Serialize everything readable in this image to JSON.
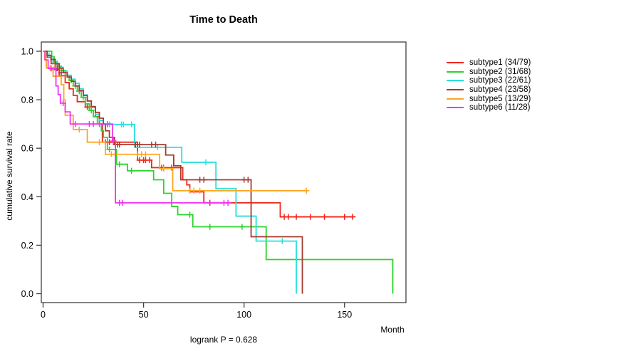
{
  "chart_data": {
    "type": "line",
    "variant": "kaplan-meier-step",
    "title": "Time to Death",
    "xlabel": "Month",
    "ylabel": "cumulative survival rate",
    "annotation": "logrank P = 0.628",
    "xlim": [
      0,
      181
    ],
    "ylim": [
      0.0,
      1.0
    ],
    "x_ticks": [
      0,
      50,
      100,
      150
    ],
    "x_tick_labels": [
      "0",
      "50",
      "100",
      "150"
    ],
    "y_ticks": [
      0.0,
      0.2,
      0.4,
      0.6,
      0.8,
      1.0
    ],
    "y_tick_labels": [
      "0.0",
      "0.2",
      "0.4",
      "0.6",
      "0.8",
      "1.0"
    ],
    "grid": false,
    "frame_color": "#404040",
    "legend_position": "right-outside",
    "series": [
      {
        "name": "subtype1",
        "label": "subtype1 (34/79)",
        "events": 34,
        "n": 79,
        "color": "#F0271C",
        "steps": [
          [
            0,
            1.0
          ],
          [
            2,
            0.975
          ],
          [
            4,
            0.949
          ],
          [
            6,
            0.924
          ],
          [
            8,
            0.899
          ],
          [
            11,
            0.871
          ],
          [
            13,
            0.845
          ],
          [
            15,
            0.818
          ],
          [
            17,
            0.792
          ],
          [
            21,
            0.77
          ],
          [
            26,
            0.73
          ],
          [
            28,
            0.7
          ],
          [
            29.5,
            0.625
          ],
          [
            47,
            0.551
          ],
          [
            54,
            0.52
          ],
          [
            69.5,
            0.47
          ],
          [
            71.5,
            0.449
          ],
          [
            73,
            0.42
          ],
          [
            80,
            0.375
          ],
          [
            118,
            0.317
          ]
        ],
        "end_month": 155,
        "censor_marks": [
          [
            5,
            0.924
          ],
          [
            9,
            0.899
          ],
          [
            22,
            0.77
          ],
          [
            24,
            0.77
          ],
          [
            31,
            0.625
          ],
          [
            33,
            0.625
          ],
          [
            35,
            0.625
          ],
          [
            48,
            0.551
          ],
          [
            50,
            0.551
          ],
          [
            51,
            0.551
          ],
          [
            53,
            0.551
          ],
          [
            59,
            0.52
          ],
          [
            60,
            0.52
          ],
          [
            64,
            0.52
          ],
          [
            83,
            0.375
          ],
          [
            120,
            0.317
          ],
          [
            122,
            0.317
          ],
          [
            126,
            0.317
          ],
          [
            133,
            0.317
          ],
          [
            140,
            0.317
          ],
          [
            150,
            0.317
          ],
          [
            154,
            0.317
          ]
        ]
      },
      {
        "name": "subtype2",
        "label": "subtype2 (31/68)",
        "events": 31,
        "n": 68,
        "color": "#2BD42B",
        "steps": [
          [
            0,
            1.0
          ],
          [
            4.3,
            0.978
          ],
          [
            5.5,
            0.956
          ],
          [
            7,
            0.939
          ],
          [
            9,
            0.921
          ],
          [
            11,
            0.9
          ],
          [
            13,
            0.88
          ],
          [
            15,
            0.857
          ],
          [
            17,
            0.835
          ],
          [
            19,
            0.81
          ],
          [
            21,
            0.783
          ],
          [
            23,
            0.756
          ],
          [
            25,
            0.73
          ],
          [
            27,
            0.7
          ],
          [
            29,
            0.672
          ],
          [
            30,
            0.645
          ],
          [
            32,
            0.595
          ],
          [
            36.5,
            0.534
          ],
          [
            42,
            0.507
          ],
          [
            55,
            0.47
          ],
          [
            60,
            0.414
          ],
          [
            64,
            0.36
          ],
          [
            67,
            0.326
          ],
          [
            74.5,
            0.276
          ],
          [
            111,
            0.141
          ],
          [
            174,
            0.0
          ]
        ],
        "end_month": 174,
        "censor_marks": [
          [
            6,
            0.956
          ],
          [
            10,
            0.921
          ],
          [
            14,
            0.88
          ],
          [
            16,
            0.857
          ],
          [
            18,
            0.835
          ],
          [
            20,
            0.81
          ],
          [
            24,
            0.756
          ],
          [
            33,
            0.595
          ],
          [
            38,
            0.534
          ],
          [
            44,
            0.507
          ],
          [
            73,
            0.326
          ],
          [
            83,
            0.276
          ],
          [
            99,
            0.276
          ]
        ]
      },
      {
        "name": "subtype3",
        "label": "subtype3 (22/61)",
        "events": 22,
        "n": 61,
        "color": "#29DFDF",
        "steps": [
          [
            0,
            1.0
          ],
          [
            2,
            0.983
          ],
          [
            4,
            0.967
          ],
          [
            6,
            0.95
          ],
          [
            8,
            0.934
          ],
          [
            10,
            0.918
          ],
          [
            12,
            0.901
          ],
          [
            14,
            0.885
          ],
          [
            16,
            0.868
          ],
          [
            18,
            0.845
          ],
          [
            20,
            0.82
          ],
          [
            22,
            0.795
          ],
          [
            24,
            0.768
          ],
          [
            26,
            0.74
          ],
          [
            28,
            0.715
          ],
          [
            30,
            0.698
          ],
          [
            45.5,
            0.604
          ],
          [
            69,
            0.542
          ],
          [
            86,
            0.434
          ],
          [
            96,
            0.32
          ],
          [
            106,
            0.217
          ],
          [
            126,
            0.0
          ]
        ],
        "end_month": 126,
        "censor_marks": [
          [
            3,
            0.983
          ],
          [
            5,
            0.967
          ],
          [
            7,
            0.95
          ],
          [
            32,
            0.698
          ],
          [
            33,
            0.698
          ],
          [
            39,
            0.698
          ],
          [
            40,
            0.698
          ],
          [
            44,
            0.698
          ],
          [
            57,
            0.604
          ],
          [
            81,
            0.542
          ],
          [
            119,
            0.217
          ]
        ]
      },
      {
        "name": "subtype4",
        "label": "subtype4 (23/58)",
        "events": 23,
        "n": 58,
        "color": "#A63A2E",
        "steps": [
          [
            0,
            1.0
          ],
          [
            2,
            0.983
          ],
          [
            4,
            0.966
          ],
          [
            6,
            0.948
          ],
          [
            8,
            0.93
          ],
          [
            10,
            0.912
          ],
          [
            12,
            0.894
          ],
          [
            14,
            0.876
          ],
          [
            16,
            0.857
          ],
          [
            18,
            0.838
          ],
          [
            20,
            0.818
          ],
          [
            22,
            0.795
          ],
          [
            24,
            0.772
          ],
          [
            26,
            0.748
          ],
          [
            28,
            0.724
          ],
          [
            30,
            0.7
          ],
          [
            31,
            0.672
          ],
          [
            33,
            0.645
          ],
          [
            35.5,
            0.615
          ],
          [
            61,
            0.572
          ],
          [
            65,
            0.528
          ],
          [
            68.5,
            0.47
          ],
          [
            103.5,
            0.235
          ],
          [
            129,
            0.0
          ]
        ],
        "end_month": 129,
        "censor_marks": [
          [
            7,
            0.93
          ],
          [
            9,
            0.912
          ],
          [
            37,
            0.615
          ],
          [
            38,
            0.615
          ],
          [
            46,
            0.615
          ],
          [
            48,
            0.615
          ],
          [
            54,
            0.615
          ],
          [
            56,
            0.615
          ],
          [
            78,
            0.47
          ],
          [
            80,
            0.47
          ],
          [
            100,
            0.47
          ],
          [
            102,
            0.47
          ]
        ]
      },
      {
        "name": "subtype5",
        "label": "subtype5 (13/29)",
        "events": 13,
        "n": 29,
        "color": "#FFA51F",
        "steps": [
          [
            0,
            1.0
          ],
          [
            0.8,
            0.966
          ],
          [
            1.6,
            0.931
          ],
          [
            5,
            0.897
          ],
          [
            9,
            0.862
          ],
          [
            10.3,
            0.8
          ],
          [
            11,
            0.736
          ],
          [
            15,
            0.677
          ],
          [
            22,
            0.625
          ],
          [
            31,
            0.575
          ],
          [
            58,
            0.516
          ],
          [
            64.5,
            0.425
          ]
        ],
        "end_month": 132,
        "censor_marks": [
          [
            3.5,
            0.931
          ],
          [
            18,
            0.677
          ],
          [
            28,
            0.625
          ],
          [
            34,
            0.575
          ],
          [
            36,
            0.575
          ],
          [
            47,
            0.575
          ],
          [
            49,
            0.575
          ],
          [
            51,
            0.575
          ],
          [
            60,
            0.516
          ],
          [
            73,
            0.425
          ],
          [
            75,
            0.425
          ],
          [
            78,
            0.425
          ],
          [
            131,
            0.425
          ]
        ]
      },
      {
        "name": "subtype6",
        "label": "subtype6 (11/28)",
        "events": 11,
        "n": 28,
        "color": "#F233F2",
        "steps": [
          [
            0,
            1.0
          ],
          [
            1,
            0.964
          ],
          [
            2.5,
            0.929
          ],
          [
            6.4,
            0.857
          ],
          [
            7.5,
            0.821
          ],
          [
            8.6,
            0.786
          ],
          [
            11,
            0.75
          ],
          [
            13.5,
            0.7
          ],
          [
            34.5,
            0.63
          ],
          [
            36,
            0.375
          ]
        ],
        "end_month": 93,
        "censor_marks": [
          [
            4,
            0.929
          ],
          [
            10,
            0.786
          ],
          [
            16,
            0.7
          ],
          [
            23,
            0.7
          ],
          [
            25,
            0.7
          ],
          [
            28,
            0.7
          ],
          [
            32,
            0.7
          ],
          [
            35,
            0.63
          ],
          [
            38,
            0.375
          ],
          [
            39.5,
            0.375
          ],
          [
            90,
            0.375
          ],
          [
            92,
            0.375
          ]
        ]
      }
    ]
  }
}
